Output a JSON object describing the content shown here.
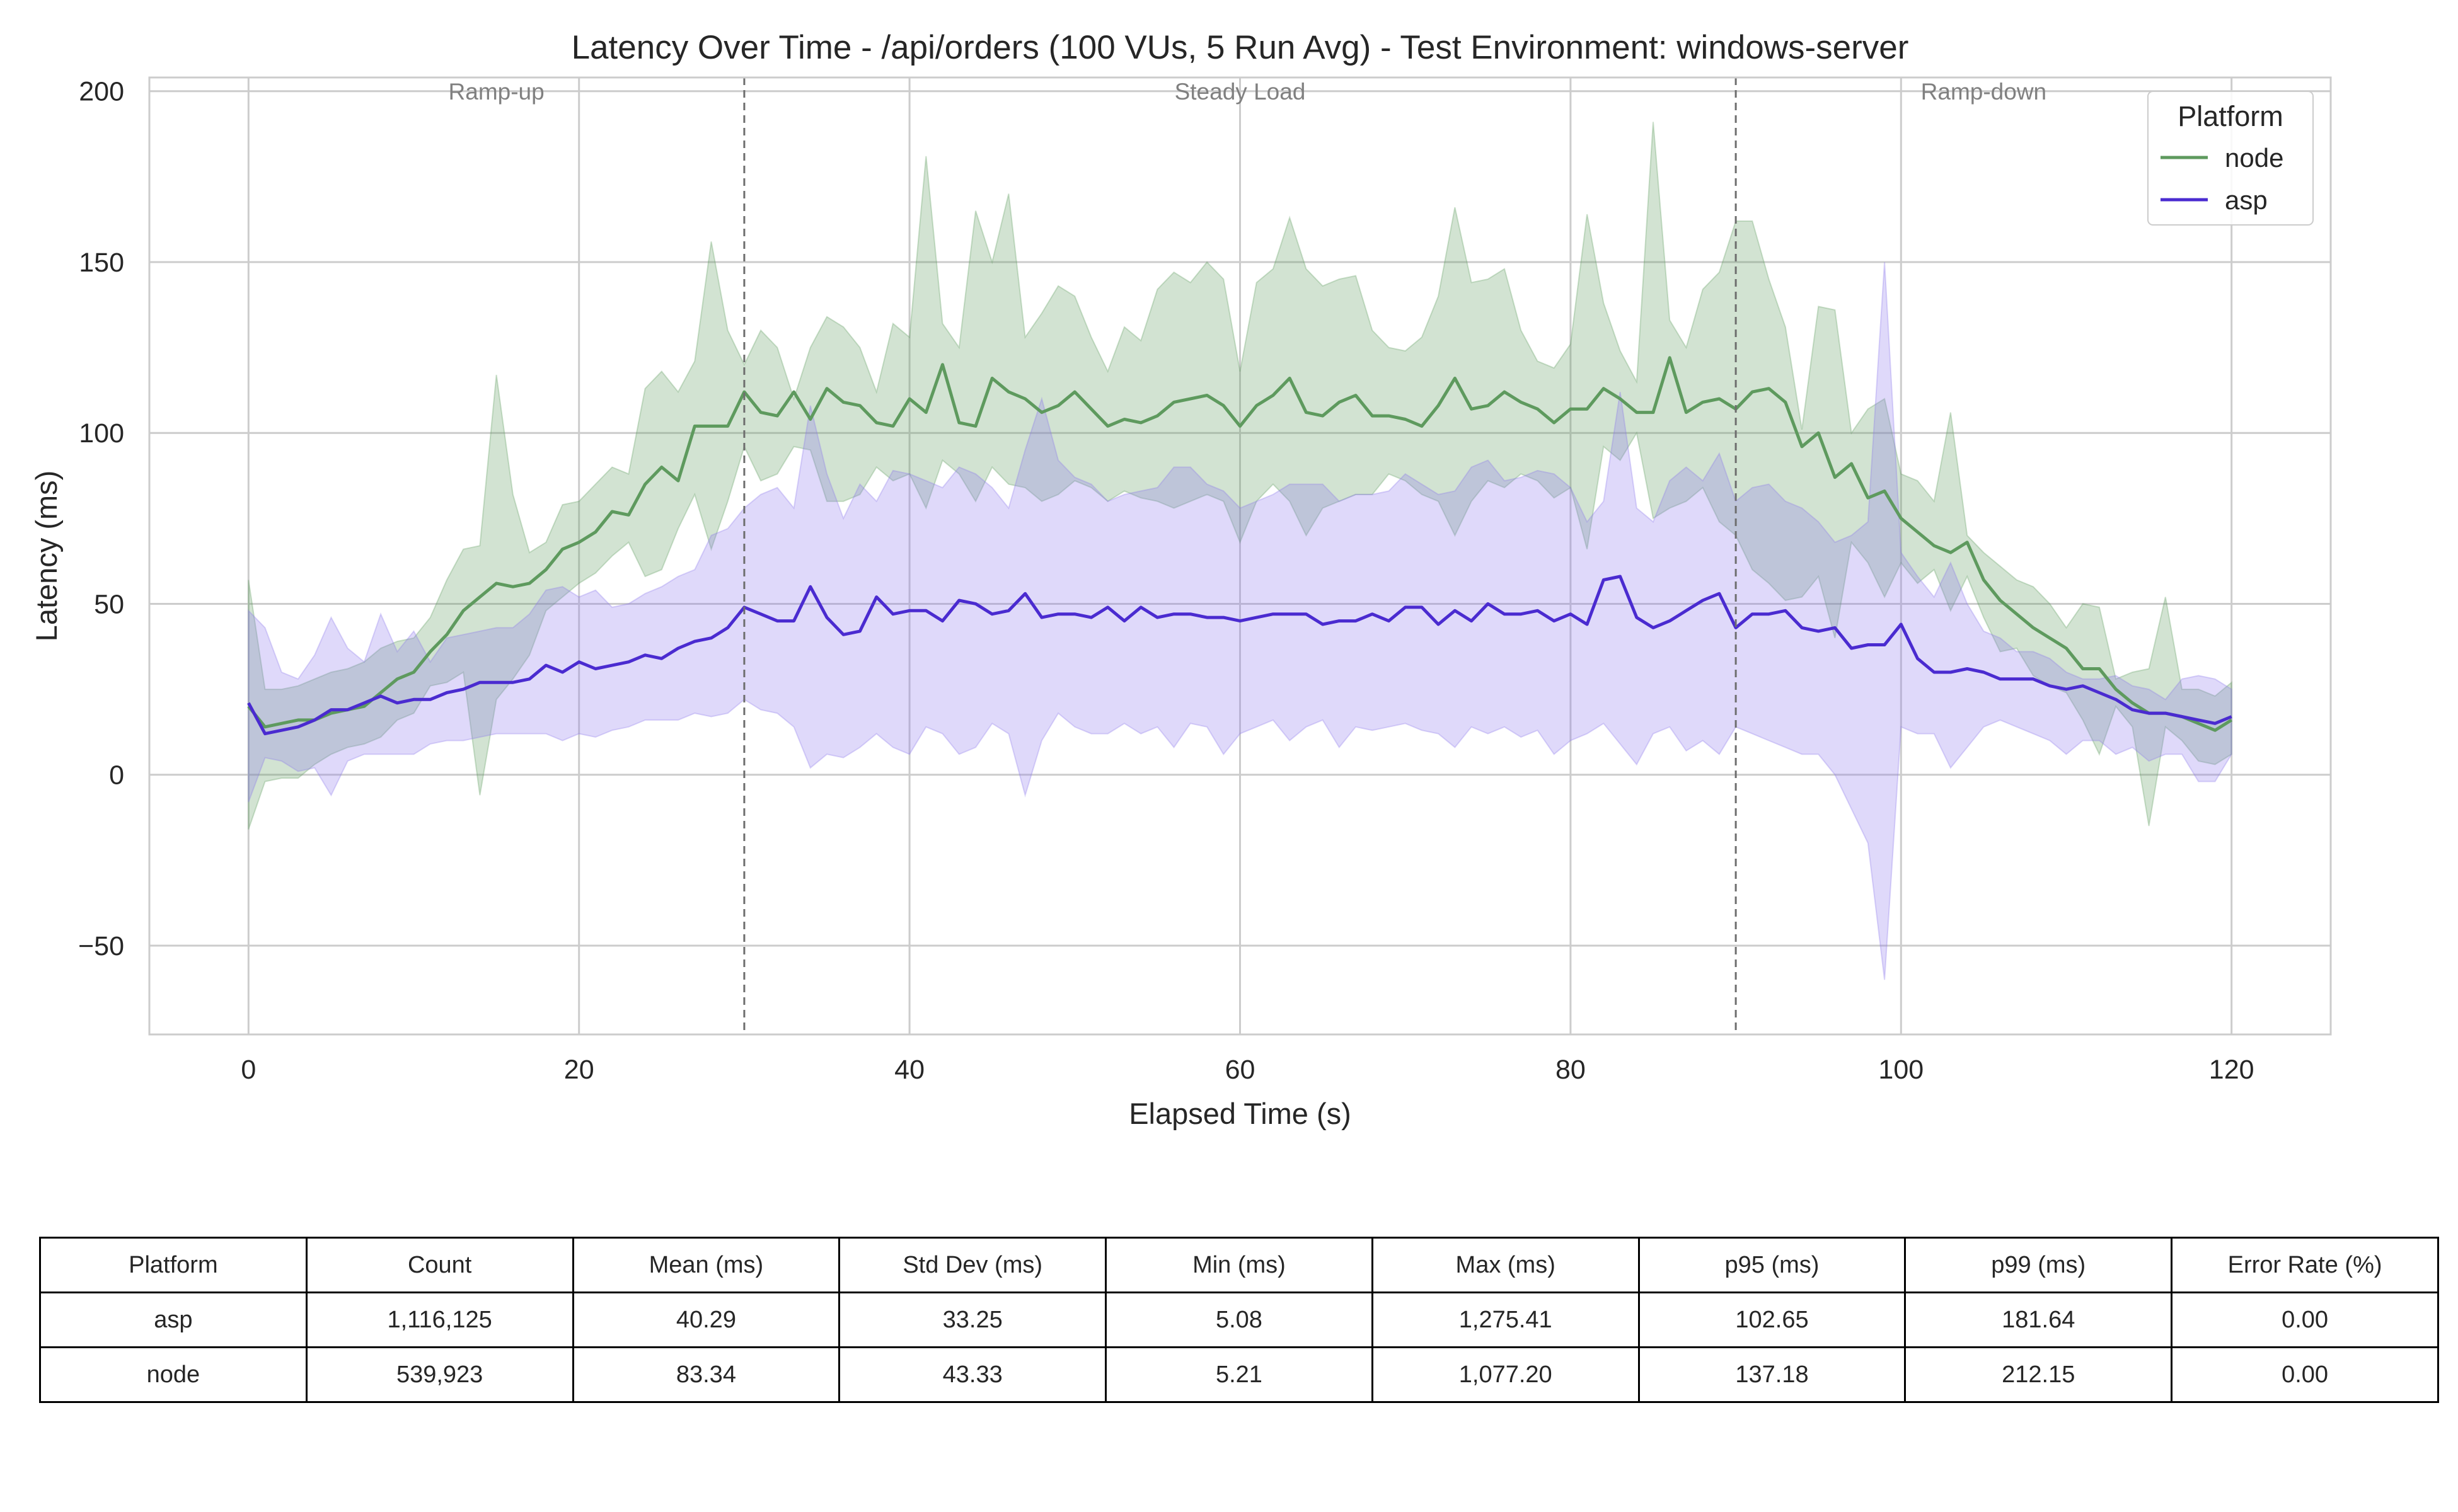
{
  "chart_data": {
    "type": "line",
    "title": "Latency Over Time - /api/orders (100 VUs, 5 Run Avg) - Test Environment: windows-server",
    "xlabel": "Elapsed Time (s)",
    "ylabel": "Latency (ms)",
    "xlim": [
      -6,
      126
    ],
    "ylim": [
      -76,
      204
    ],
    "x_ticks": [
      0,
      20,
      40,
      60,
      80,
      100,
      120
    ],
    "y_ticks": [
      -50,
      0,
      50,
      100,
      150,
      200
    ],
    "x_tick_labels": [
      "0",
      "20",
      "40",
      "60",
      "80",
      "100",
      "120"
    ],
    "y_tick_labels": [
      "−50",
      "0",
      "50",
      "100",
      "150",
      "200"
    ],
    "grid": true,
    "legend": {
      "title": "Platform",
      "position": "top-right"
    },
    "phase_boundaries": [
      30,
      90
    ],
    "phases": [
      {
        "label": "Ramp-up",
        "x": 15
      },
      {
        "label": "Steady Load",
        "x": 60
      },
      {
        "label": "Ramp-down",
        "x": 105
      }
    ],
    "x": [
      0,
      1,
      2,
      3,
      4,
      5,
      6,
      7,
      8,
      9,
      10,
      11,
      12,
      13,
      14,
      15,
      16,
      17,
      18,
      19,
      20,
      21,
      22,
      23,
      24,
      25,
      26,
      27,
      28,
      29,
      30,
      31,
      32,
      33,
      34,
      35,
      36,
      37,
      38,
      39,
      40,
      41,
      42,
      43,
      44,
      45,
      46,
      47,
      48,
      49,
      50,
      51,
      52,
      53,
      54,
      55,
      56,
      57,
      58,
      59,
      60,
      61,
      62,
      63,
      64,
      65,
      66,
      67,
      68,
      69,
      70,
      71,
      72,
      73,
      74,
      75,
      76,
      77,
      78,
      79,
      80,
      81,
      82,
      83,
      84,
      85,
      86,
      87,
      88,
      89,
      90,
      91,
      92,
      93,
      94,
      95,
      96,
      97,
      98,
      99,
      100,
      101,
      102,
      103,
      104,
      105,
      106,
      107,
      108,
      109,
      110,
      111,
      112,
      113,
      114,
      115,
      116,
      117,
      118,
      119,
      120
    ],
    "series": [
      {
        "name": "node",
        "color": "#5e9a5e",
        "band_color": "#5e9a5e",
        "mean": [
          20,
          14,
          15,
          16,
          16,
          18,
          19,
          20,
          24,
          28,
          30,
          36,
          41,
          48,
          52,
          56,
          55,
          56,
          60,
          66,
          68,
          71,
          77,
          76,
          85,
          90,
          86,
          102,
          102,
          102,
          112,
          106,
          105,
          112,
          104,
          113,
          109,
          108,
          103,
          102,
          110,
          106,
          120,
          103,
          102,
          116,
          112,
          110,
          106,
          108,
          112,
          107,
          102,
          104,
          103,
          105,
          109,
          110,
          111,
          108,
          102,
          108,
          111,
          116,
          106,
          105,
          109,
          111,
          105,
          105,
          104,
          102,
          108,
          116,
          107,
          108,
          112,
          109,
          107,
          103,
          107,
          107,
          113,
          110,
          106,
          106,
          122,
          106,
          109,
          110,
          107,
          112,
          113,
          109,
          96,
          100,
          87,
          91,
          81,
          83,
          75,
          71,
          67,
          65,
          68,
          57,
          51,
          47,
          43,
          40,
          37,
          31,
          31,
          25,
          21,
          18,
          18,
          17,
          15,
          13,
          16
        ],
        "upper": [
          57,
          25,
          25,
          26,
          28,
          30,
          31,
          33,
          37,
          39,
          40,
          46,
          57,
          66,
          67,
          117,
          82,
          65,
          68,
          79,
          80,
          85,
          90,
          88,
          113,
          118,
          112,
          121,
          156,
          130,
          120,
          130,
          125,
          110,
          125,
          134,
          131,
          125,
          112,
          132,
          128,
          181,
          132,
          125,
          165,
          150,
          170,
          128,
          135,
          143,
          140,
          128,
          118,
          131,
          127,
          142,
          147,
          144,
          150,
          145,
          118,
          144,
          148,
          163,
          148,
          143,
          145,
          146,
          130,
          125,
          124,
          128,
          140,
          166,
          144,
          145,
          148,
          130,
          121,
          119,
          126,
          164,
          138,
          124,
          115,
          191,
          133,
          125,
          142,
          147,
          162,
          162,
          145,
          131,
          101,
          137,
          136,
          100,
          107,
          110,
          88,
          86,
          80,
          106,
          70,
          65,
          61,
          57,
          55,
          50,
          43,
          50,
          49,
          28,
          30,
          31,
          52,
          25,
          25,
          23,
          27
        ],
        "lower": [
          -16,
          -2,
          -1,
          -1,
          3,
          6,
          8,
          9,
          11,
          16,
          18,
          26,
          27,
          30,
          -6,
          22,
          28,
          35,
          48,
          52,
          56,
          59,
          64,
          68,
          58,
          60,
          72,
          82,
          66,
          80,
          96,
          86,
          88,
          96,
          95,
          80,
          80,
          82,
          90,
          86,
          88,
          78,
          92,
          88,
          80,
          90,
          85,
          84,
          80,
          82,
          86,
          84,
          80,
          83,
          81,
          80,
          78,
          80,
          82,
          80,
          68,
          80,
          85,
          80,
          70,
          78,
          80,
          82,
          82,
          88,
          86,
          82,
          80,
          70,
          80,
          86,
          84,
          88,
          86,
          81,
          84,
          66,
          96,
          92,
          100,
          75,
          78,
          80,
          84,
          74,
          70,
          60,
          56,
          51,
          52,
          58,
          40,
          68,
          62,
          52,
          62,
          56,
          60,
          48,
          58,
          46,
          36,
          37,
          29,
          26,
          24,
          16,
          6,
          20,
          14,
          -15,
          14,
          10,
          4,
          3,
          6
        ]
      },
      {
        "name": "asp",
        "color": "#4a2bd0",
        "band_color": "#8c78ec",
        "mean": [
          21,
          12,
          13,
          14,
          16,
          19,
          19,
          21,
          23,
          21,
          22,
          22,
          24,
          25,
          27,
          27,
          27,
          28,
          32,
          30,
          33,
          31,
          32,
          33,
          35,
          34,
          37,
          39,
          40,
          43,
          49,
          47,
          45,
          45,
          55,
          46,
          41,
          42,
          52,
          47,
          48,
          48,
          45,
          51,
          50,
          47,
          48,
          53,
          46,
          47,
          47,
          46,
          49,
          45,
          49,
          46,
          47,
          47,
          46,
          46,
          45,
          46,
          47,
          47,
          47,
          44,
          45,
          45,
          47,
          45,
          49,
          49,
          44,
          48,
          45,
          50,
          47,
          47,
          48,
          45,
          47,
          44,
          57,
          58,
          46,
          43,
          45,
          48,
          51,
          53,
          43,
          47,
          47,
          48,
          43,
          42,
          43,
          37,
          38,
          38,
          44,
          34,
          30,
          30,
          31,
          30,
          28,
          28,
          28,
          26,
          25,
          26,
          24,
          22,
          19,
          18,
          18,
          17,
          16,
          15,
          17
        ],
        "upper": [
          48,
          43,
          30,
          28,
          35,
          46,
          37,
          33,
          47,
          36,
          42,
          33,
          40,
          41,
          42,
          43,
          43,
          47,
          54,
          55,
          52,
          54,
          49,
          50,
          53,
          55,
          58,
          60,
          70,
          72,
          78,
          82,
          84,
          78,
          108,
          88,
          75,
          85,
          80,
          89,
          88,
          86,
          84,
          90,
          88,
          84,
          78,
          95,
          110,
          92,
          87,
          85,
          80,
          82,
          83,
          84,
          90,
          90,
          85,
          83,
          78,
          80,
          82,
          85,
          85,
          85,
          80,
          82,
          82,
          83,
          88,
          85,
          82,
          83,
          90,
          92,
          86,
          87,
          89,
          88,
          84,
          74,
          80,
          112,
          78,
          74,
          86,
          90,
          86,
          94,
          80,
          84,
          85,
          80,
          78,
          74,
          68,
          70,
          74,
          150,
          65,
          58,
          52,
          62,
          50,
          42,
          40,
          36,
          36,
          34,
          30,
          28,
          28,
          29,
          26,
          25,
          22,
          28,
          29,
          28,
          25
        ],
        "lower": [
          -8,
          5,
          4,
          1,
          2,
          -6,
          4,
          6,
          6,
          6,
          6,
          9,
          10,
          10,
          11,
          12,
          12,
          12,
          12,
          10,
          12,
          11,
          13,
          14,
          16,
          16,
          16,
          18,
          17,
          18,
          22,
          19,
          18,
          14,
          2,
          6,
          5,
          8,
          12,
          8,
          6,
          14,
          12,
          6,
          8,
          15,
          12,
          -6,
          10,
          18,
          14,
          12,
          12,
          15,
          12,
          14,
          8,
          15,
          14,
          6,
          12,
          14,
          16,
          10,
          14,
          16,
          8,
          14,
          13,
          14,
          15,
          13,
          12,
          8,
          14,
          12,
          14,
          11,
          13,
          6,
          10,
          12,
          15,
          9,
          3,
          12,
          14,
          7,
          10,
          6,
          14,
          12,
          10,
          8,
          6,
          6,
          0,
          -10,
          -20,
          -60,
          14,
          12,
          12,
          2,
          8,
          14,
          16,
          14,
          12,
          10,
          6,
          10,
          10,
          6,
          8,
          4,
          6,
          6,
          -2,
          -2,
          6
        ]
      }
    ]
  },
  "table": {
    "headers": [
      "Platform",
      "Count",
      "Mean (ms)",
      "Std Dev (ms)",
      "Min (ms)",
      "Max (ms)",
      "p95 (ms)",
      "p99 (ms)",
      "Error Rate (%)"
    ],
    "rows": [
      [
        "asp",
        "1,116,125",
        "40.29",
        "33.25",
        "5.08",
        "1,275.41",
        "102.65",
        "181.64",
        "0.00"
      ],
      [
        "node",
        "539,923",
        "83.34",
        "43.33",
        "5.21",
        "1,077.20",
        "137.18",
        "212.15",
        "0.00"
      ]
    ]
  }
}
